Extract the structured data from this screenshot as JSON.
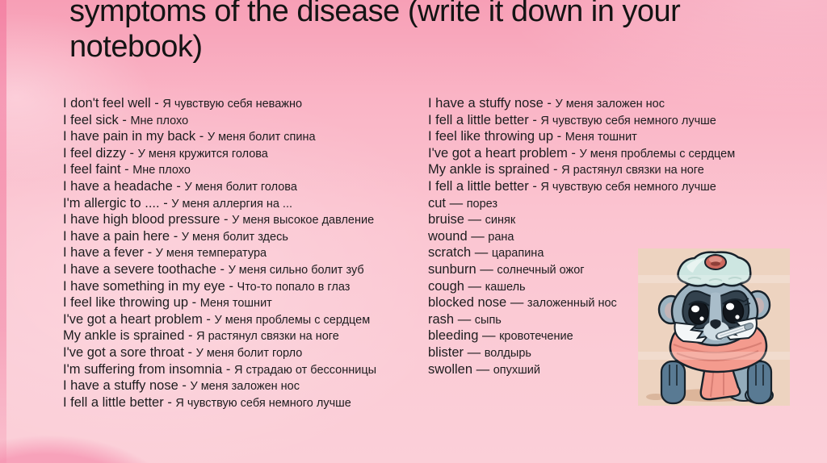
{
  "slide": {
    "title": "symptoms of the disease (write it down in your notebook)"
  },
  "left_column": [
    {
      "en": "I don't feel well",
      "sep": " - ",
      "ru": "Я чувствую себя неважно"
    },
    {
      "en": "I feel sick",
      "sep": " - ",
      "ru": "Мне плохо"
    },
    {
      "en": "I have pain in my back",
      "sep": " - ",
      "ru": "У меня болит спина"
    },
    {
      "en": "I feel dizzy",
      "sep": " - ",
      "ru": "У меня кружится голова"
    },
    {
      "en": "I feel faint",
      "sep": " - ",
      "ru": "Мне плохо"
    },
    {
      "en": "I have a headache",
      "sep": " - ",
      "ru": "У меня болит голова"
    },
    {
      "en": "I'm allergic to ....",
      "sep": " - ",
      "ru": "У меня аллергия на ..."
    },
    {
      "en": "I have high blood pressure",
      "sep": " - ",
      "ru": "У меня высокое давление"
    },
    {
      "en": "I have a pain here",
      "sep": " - ",
      "ru": "У меня болит здесь"
    },
    {
      "en": "I have a fever",
      "sep": " - ",
      "ru": "У меня температура"
    },
    {
      "en": "I have a severe toothache",
      "sep": " - ",
      "ru": "У меня сильно болит зуб"
    },
    {
      "en": "I have something in my eye",
      "sep": " - ",
      "ru": "Что-то попало в глаз"
    },
    {
      "en": "I feel like throwing up",
      "sep": " - ",
      "ru": "Меня тошнит"
    },
    {
      "en": "I've got a heart problem",
      "sep": " - ",
      "ru": "У меня проблемы с сердцем"
    },
    {
      "en": "My ankle is sprained",
      "sep": " - ",
      "ru": "Я растянул связки на ноге"
    },
    {
      "en": "I've got a sore throat",
      "sep": " - ",
      "ru": "У меня болит горло"
    },
    {
      "en": "I'm suffering from insomnia",
      "sep": " - ",
      "ru": "Я страдаю от бессонницы"
    },
    {
      "en": "I have a stuffy nose",
      "sep": " - ",
      "ru": "У меня заложен нос"
    },
    {
      "en": "I fell a little better",
      "sep": " - ",
      "ru": "Я чувствую себя немного лучше"
    }
  ],
  "right_column": [
    {
      "en": "I have a stuffy nose",
      "sep": " - ",
      "ru": "У меня заложен нос"
    },
    {
      "en": "I fell a little better",
      "sep": " - ",
      "ru": "Я чувствую себя немного лучше"
    },
    {
      "en": "I feel like throwing up",
      "sep": " - ",
      "ru": "Меня тошнит"
    },
    {
      "en": "I've got a heart problem",
      "sep": " - ",
      "ru": "У меня проблемы с сердцем"
    },
    {
      "en": "My ankle is sprained",
      "sep": " - ",
      "ru": "Я растянул связки на ноге"
    },
    {
      "en": "I fell a little better",
      "sep": " - ",
      "ru": "Я чувствую себя немного лучше"
    },
    {
      "en": "cut",
      "sep": " — ",
      "ru": "порез"
    },
    {
      "en": "bruise",
      "sep": " — ",
      "ru": "синяк"
    },
    {
      "en": "wound",
      "sep": " — ",
      "ru": "рана"
    },
    {
      "en": "scratch",
      "sep": " — ",
      "ru": "царапина"
    },
    {
      "en": "sunburn",
      "sep": " — ",
      "ru": "солнечный ожог"
    },
    {
      "en": "cough",
      "sep": " — ",
      "ru": "кашель"
    },
    {
      "en": "blocked nose",
      "sep": " — ",
      "ru": "заложенный нос"
    },
    {
      "en": "rash",
      "sep": " — ",
      "ru": "сыпь"
    },
    {
      "en": "bleeding",
      "sep": " — ",
      "ru": "кровотечение"
    },
    {
      "en": "blister",
      "sep": " — ",
      "ru": "волдырь"
    },
    {
      "en": "swollen",
      "sep": " — ",
      "ru": "опухший"
    }
  ],
  "image": {
    "description": "sick raccoon sticker with ice pack on head, thermometer in mouth, wrapped in scarf",
    "background": "#edd3c0"
  },
  "colors": {
    "slide_pink_top": "#f79fb6",
    "slide_pink_main": "#fbc5d1",
    "title_text": "#141414",
    "body_text": "#1d1d1f",
    "scarf": "#f49b8e",
    "ice_pack": "#cde6e1"
  }
}
